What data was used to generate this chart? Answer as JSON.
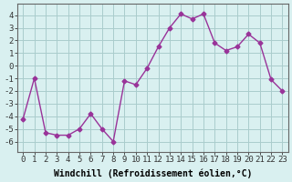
{
  "x": [
    0,
    1,
    2,
    3,
    4,
    5,
    6,
    7,
    8,
    9,
    10,
    11,
    12,
    13,
    14,
    15,
    16,
    17,
    18,
    19,
    20,
    21,
    22,
    23
  ],
  "y": [
    -4.2,
    -1.0,
    -5.3,
    -5.5,
    -5.5,
    -5.0,
    -3.8,
    -5.0,
    -6.0,
    -1.2,
    -1.5,
    -0.2,
    1.5,
    3.0,
    4.1,
    3.7,
    4.1,
    1.8,
    1.2,
    1.5,
    2.5,
    1.8,
    -1.1,
    -2.0
  ],
  "x_tick_labels": [
    "0",
    "1",
    "2",
    "3",
    "4",
    "5",
    "6",
    "7",
    "8",
    "9",
    "10",
    "11",
    "12",
    "13",
    "14",
    "15",
    "16",
    "17",
    "18",
    "19",
    "20",
    "21",
    "22",
    "23"
  ],
  "ylim": [
    -6.8,
    4.9
  ],
  "xlim": [
    -0.5,
    23.5
  ],
  "xlabel": "Windchill (Refroidissement éolien,°C)",
  "line_color": "#993399",
  "bg_color": "#d9f0f0",
  "grid_color": "#aacccc",
  "axis_fontsize": 7,
  "tick_fontsize": 6.5
}
